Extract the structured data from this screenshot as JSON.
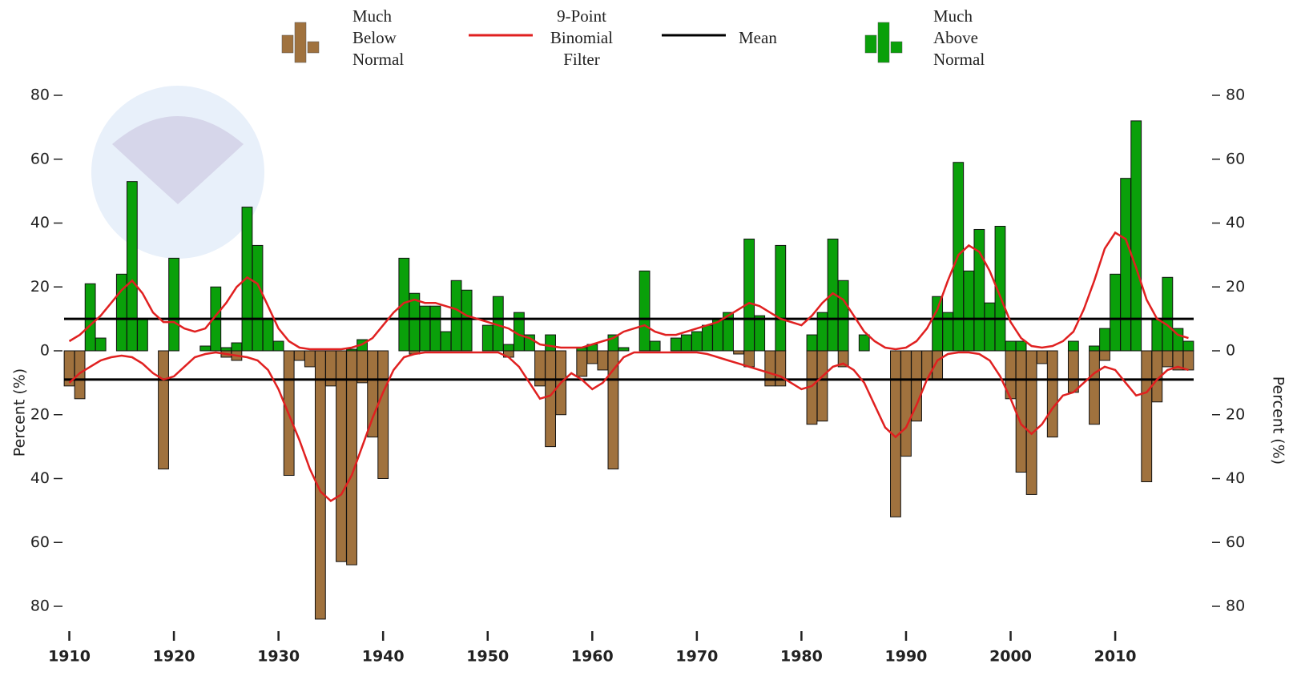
{
  "chart_data": {
    "type": "bar",
    "y_label": "Percent (%)",
    "y2_label": "Percent (%)",
    "xlim": [
      1909.5,
      2017.5
    ],
    "xticks": [
      1910,
      1920,
      1930,
      1940,
      1950,
      1960,
      1970,
      1980,
      1990,
      2000,
      2010
    ],
    "ylim": [
      -80,
      80
    ],
    "yticks": [
      {
        "value": -80,
        "label": "80"
      },
      {
        "value": -60,
        "label": "60"
      },
      {
        "value": -40,
        "label": "40"
      },
      {
        "value": -20,
        "label": "20"
      },
      0,
      20,
      40,
      60,
      80
    ],
    "y2lim": [
      -80,
      80
    ],
    "y2ticks": [
      {
        "value": -80,
        "label": "80"
      },
      {
        "value": -60,
        "label": "60"
      },
      {
        "value": -40,
        "label": "40"
      },
      {
        "value": -20,
        "label": "20"
      },
      0,
      20,
      40,
      60,
      80
    ],
    "x": [
      1910,
      1911,
      1912,
      1913,
      1914,
      1915,
      1916,
      1917,
      1918,
      1919,
      1920,
      1921,
      1922,
      1923,
      1924,
      1925,
      1926,
      1927,
      1928,
      1929,
      1930,
      1931,
      1932,
      1933,
      1934,
      1935,
      1936,
      1937,
      1938,
      1939,
      1940,
      1941,
      1942,
      1943,
      1944,
      1945,
      1946,
      1947,
      1948,
      1949,
      1950,
      1951,
      1952,
      1953,
      1954,
      1955,
      1956,
      1957,
      1958,
      1959,
      1960,
      1961,
      1962,
      1963,
      1964,
      1965,
      1966,
      1967,
      1968,
      1969,
      1970,
      1971,
      1972,
      1973,
      1974,
      1975,
      1976,
      1977,
      1978,
      1979,
      1980,
      1981,
      1982,
      1983,
      1984,
      1985,
      1986,
      1987,
      1988,
      1989,
      1990,
      1991,
      1992,
      1993,
      1994,
      1995,
      1996,
      1997,
      1998,
      1999,
      2000,
      2001,
      2002,
      2003,
      2004,
      2005,
      2006,
      2007,
      2008,
      2009,
      2010,
      2011,
      2012,
      2013,
      2014,
      2015,
      2016,
      2017
    ],
    "series": [
      {
        "name": "Much Below Normal",
        "color": "#a0723e",
        "values": [
          -11,
          -15,
          0,
          0,
          0,
          0,
          0,
          0,
          0,
          -37,
          0,
          0,
          0,
          0,
          0,
          -2,
          -3,
          0,
          0,
          0,
          0,
          -39,
          -3,
          -5,
          -84,
          -11,
          -66,
          -67,
          -10,
          -27,
          -40,
          0,
          0,
          -1,
          0,
          0,
          0,
          0,
          0,
          0,
          0,
          0,
          -2,
          0,
          0,
          -11,
          -30,
          -20,
          0,
          -8,
          -4,
          -6,
          -37,
          0,
          0,
          0,
          0,
          0,
          0,
          0,
          0,
          0,
          0,
          0,
          -1,
          -5,
          0,
          -11,
          -11,
          0,
          0,
          -23,
          -22,
          0,
          -5,
          0,
          0,
          0,
          0,
          -52,
          -33,
          -22,
          -9,
          -9,
          0,
          0,
          0,
          0,
          0,
          0,
          -15,
          -38,
          -45,
          -4,
          -27,
          0,
          -13,
          0,
          -23,
          -3,
          0,
          0,
          0,
          -41,
          -16,
          -5,
          -6,
          -6
        ]
      },
      {
        "name": "Much Above Normal",
        "color": "#0aa00a",
        "values": [
          0,
          0,
          21,
          4,
          0,
          24,
          53,
          10,
          0,
          0,
          29,
          0,
          0,
          1.5,
          20,
          1,
          2.5,
          45,
          33,
          10,
          3,
          0,
          0,
          0,
          0,
          0,
          0,
          0.5,
          3.5,
          0,
          0,
          0,
          29,
          18,
          14,
          14,
          6,
          22,
          19,
          0,
          8,
          17,
          2,
          12,
          5,
          0,
          5,
          0,
          0,
          1,
          2,
          0,
          5,
          1,
          0,
          25,
          3,
          0,
          4,
          5,
          6,
          8,
          10,
          12,
          0,
          35,
          11,
          0,
          33,
          0,
          0,
          5,
          12,
          35,
          22,
          0,
          5,
          0,
          0,
          0,
          0,
          0,
          0,
          17,
          12,
          59,
          25,
          38,
          15,
          39,
          3,
          3,
          0,
          0,
          0,
          0,
          3,
          0,
          1.5,
          7,
          24,
          54,
          72,
          0,
          10,
          23,
          7,
          3
        ]
      }
    ],
    "filter": {
      "name": "9-Point Binomial Filter",
      "color": "#e02020",
      "upper": [
        3,
        5,
        8,
        11,
        15,
        19,
        22,
        18,
        12,
        9,
        9,
        7,
        6,
        7,
        11,
        15,
        20,
        23,
        21,
        14,
        7,
        3,
        1,
        0.5,
        0.5,
        0.5,
        0.5,
        1,
        2,
        4,
        8,
        12,
        15,
        16,
        15,
        15,
        14,
        13,
        11,
        10,
        9,
        8,
        7,
        5,
        4,
        2,
        1.5,
        1,
        1,
        1,
        2,
        3,
        4,
        6,
        7,
        8,
        6,
        5,
        5,
        6,
        7,
        8,
        9,
        11,
        13,
        15,
        14,
        12,
        10,
        9,
        8,
        11,
        15,
        18,
        16,
        11,
        6,
        3,
        1,
        0.5,
        1,
        3,
        7,
        13,
        22,
        30,
        33,
        31,
        25,
        17,
        9,
        4,
        1.5,
        1,
        1.5,
        3,
        6,
        13,
        22,
        32,
        37,
        35,
        26,
        16,
        10,
        8,
        5,
        4
      ],
      "lower": [
        -10,
        -7,
        -5,
        -3,
        -2,
        -1.5,
        -2,
        -4,
        -7,
        -9,
        -8,
        -5,
        -2,
        -1,
        -0.5,
        -1,
        -1.5,
        -2,
        -3,
        -6,
        -12,
        -20,
        -28,
        -37,
        -44,
        -47,
        -45,
        -39,
        -30,
        -21,
        -13,
        -6,
        -2,
        -1,
        -0.5,
        -0.5,
        -0.5,
        -0.5,
        -0.5,
        -0.5,
        -0.5,
        -0.5,
        -2,
        -5,
        -10,
        -15,
        -14,
        -10,
        -7,
        -9,
        -12,
        -10,
        -6,
        -2,
        -0.5,
        -0.5,
        -0.5,
        -0.5,
        -0.5,
        -0.5,
        -0.5,
        -1,
        -2,
        -3,
        -4,
        -5,
        -6,
        -7,
        -8,
        -10,
        -12,
        -11,
        -8,
        -5,
        -4,
        -6,
        -10,
        -17,
        -24,
        -27,
        -24,
        -17,
        -9,
        -3,
        -1,
        -0.5,
        -0.5,
        -1,
        -3,
        -8,
        -15,
        -23,
        -26,
        -23,
        -18,
        -14,
        -13,
        -10,
        -7,
        -5,
        -6,
        -10,
        -14,
        -13,
        -9,
        -6,
        -5,
        -6
      ]
    },
    "mean": {
      "name": "Mean",
      "color": "#000000",
      "values": [
        10,
        -9
      ]
    }
  }
}
